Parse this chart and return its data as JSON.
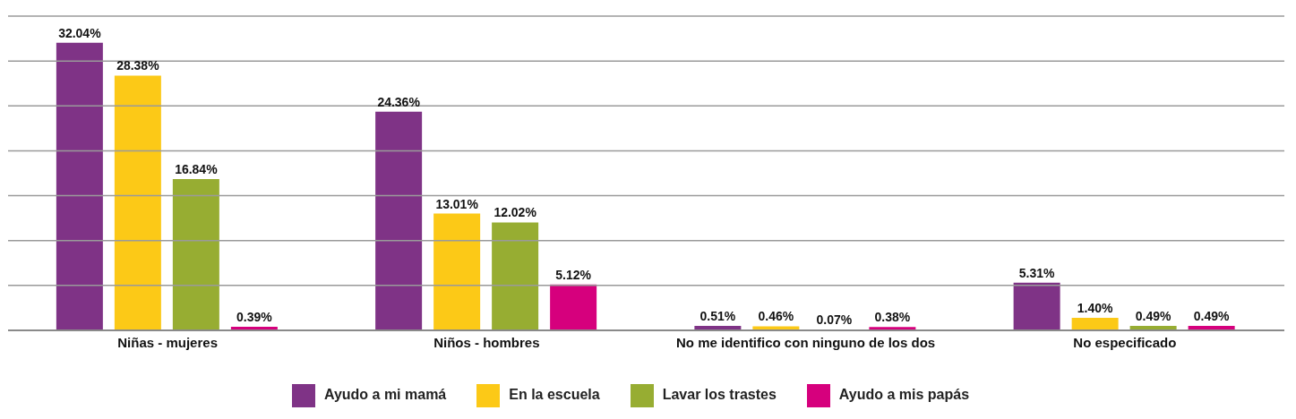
{
  "chart_data": {
    "type": "bar",
    "categories": [
      "Niñas - mujeres",
      "Niños - hombres",
      "No me identifico con ninguno de los dos",
      "No especificado"
    ],
    "series": [
      {
        "name": "Ayudo a mi mamá",
        "color": "#7f3386",
        "values": [
          32.04,
          24.36,
          0.51,
          5.31
        ],
        "value_labels": [
          "32.04%",
          "24.36%",
          "0.51%",
          "5.31%"
        ]
      },
      {
        "name": "En la escuela",
        "color": "#fcc917",
        "values": [
          28.38,
          13.01,
          0.46,
          1.4
        ],
        "value_labels": [
          "28.38%",
          "13.01%",
          "0.46%",
          "1.40%"
        ]
      },
      {
        "name": "Lavar los trastes",
        "color": "#97ad32",
        "values": [
          16.84,
          12.02,
          0.07,
          0.49
        ],
        "value_labels": [
          "16.84%",
          "12.02%",
          "0.07%",
          "0.49%"
        ]
      },
      {
        "name": "Ayudo a mis papás",
        "color": "#d6007d",
        "values": [
          0.39,
          5.12,
          0.38,
          0.49
        ],
        "value_labels": [
          "0.39%",
          "5.12%",
          "0.38%",
          "0.49%"
        ]
      }
    ],
    "ylim": [
      0,
      35
    ],
    "yticks": [
      0,
      {
        "value": 5,
        "label": null
      },
      {
        "value": 10,
        "label": null
      },
      {
        "value": 15,
        "label": null
      },
      {
        "value": 20,
        "label": null
      },
      {
        "value": 25,
        "label": null
      },
      {
        "value": 30,
        "label": null
      },
      {
        "value": 35,
        "label": null
      }
    ],
    "tick_labels": "x",
    "grid": "y",
    "legend": "bottom"
  }
}
